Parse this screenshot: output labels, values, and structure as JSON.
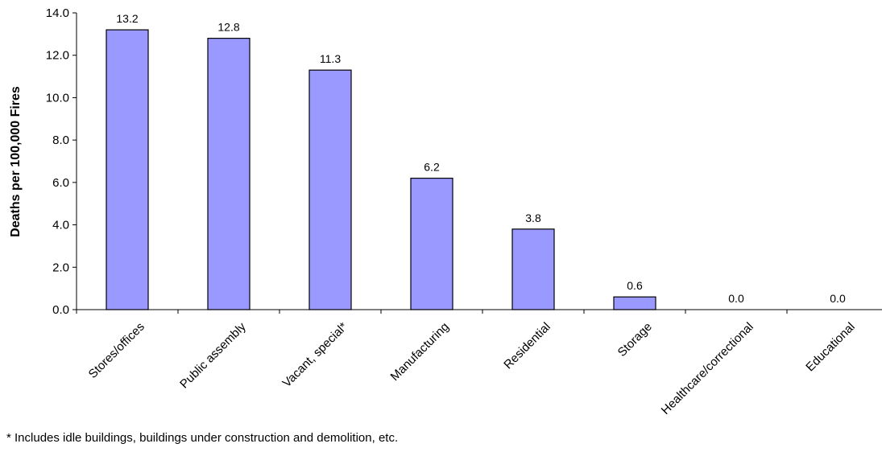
{
  "chart_data": {
    "type": "bar",
    "categories": [
      "Stores/offices",
      "Public assembly",
      "Vacant, special*",
      "Manufacturing",
      "Residential",
      "Storage",
      "Healthcare/correctional",
      "Educational"
    ],
    "values": [
      13.2,
      12.8,
      11.3,
      6.2,
      3.8,
      0.6,
      0.0,
      0.0
    ],
    "data_labels": [
      "13.2",
      "12.8",
      "11.3",
      "6.2",
      "3.8",
      "0.6",
      "0.0",
      "0.0"
    ],
    "ylabel": "Deaths per 100,000 Fires",
    "ylim": [
      0,
      14
    ],
    "y_ticks": [
      "0.0",
      "2.0",
      "4.0",
      "6.0",
      "8.0",
      "10.0",
      "12.0",
      "14.0"
    ],
    "grid": false,
    "bar_color": "#9999ff",
    "bar_edge_color": "#000000"
  },
  "footnote": "* Includes idle buildings, buildings under construction and demolition, etc."
}
